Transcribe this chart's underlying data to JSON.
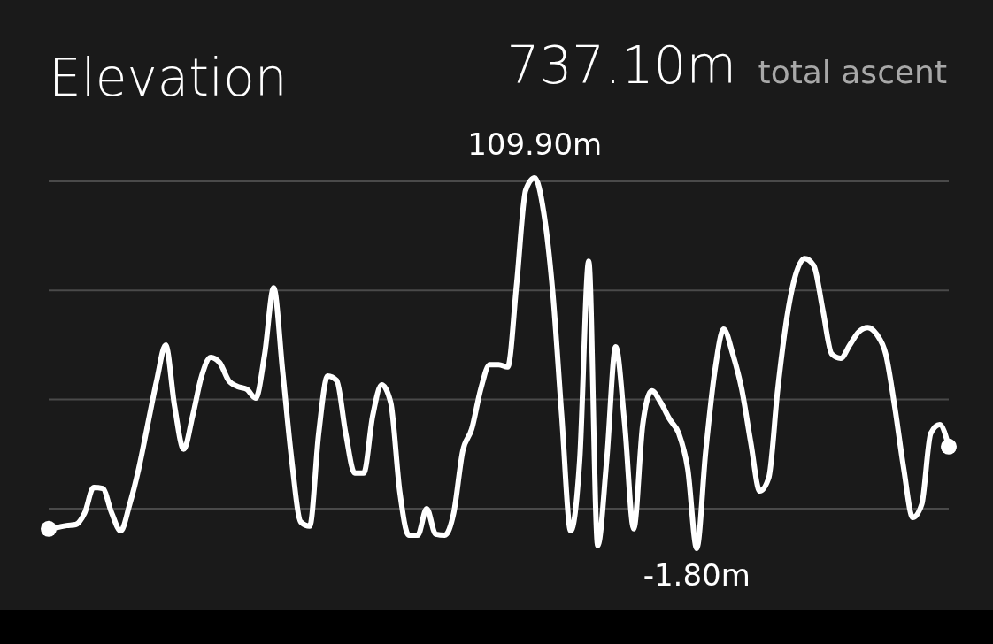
{
  "chart_data": {
    "type": "line",
    "title": "Elevation",
    "subtitle": "737.10m",
    "annotations": [
      "total ascent"
    ],
    "categories": [
      null,
      null,
      null,
      null,
      null,
      null,
      null,
      null,
      null,
      null,
      null,
      null,
      null,
      null,
      null,
      null,
      null,
      null,
      null,
      null,
      null,
      null,
      null,
      null,
      null,
      null,
      null,
      null,
      null,
      null,
      null,
      null,
      null,
      null,
      null,
      null,
      null,
      null,
      null,
      null,
      null,
      null,
      null,
      null,
      null,
      null,
      null,
      null,
      null,
      null,
      null,
      null,
      null,
      null,
      null,
      null,
      null,
      null,
      null,
      null,
      null,
      null,
      null,
      null,
      null,
      null,
      null,
      null,
      null,
      null,
      null,
      null,
      null,
      null,
      null,
      null,
      null,
      null,
      null,
      null,
      null,
      null,
      null,
      null,
      null,
      null,
      null,
      null,
      null,
      null,
      null,
      null,
      null,
      null,
      null,
      null,
      null,
      null,
      null,
      null,
      null
    ],
    "series": [
      {
        "color": "#ffffff",
        "values": [
          4.1,
          4.6,
          5.1,
          5.4,
          8.9,
          16.6,
          16.3,
          8.9,
          3.5,
          11.5,
          22.2,
          35.5,
          48.8,
          59.5,
          40.9,
          28.1,
          38.2,
          50.2,
          55.8,
          54.2,
          48.8,
          47.0,
          46.2,
          43.5,
          56.8,
          76.8,
          51.5,
          24.9,
          6.2,
          4.9,
          32.9,
          50.2,
          48.8,
          32.9,
          20.9,
          20.9,
          38.2,
          47.5,
          42.2,
          15.5,
          2.2,
          2.2,
          10.2,
          2.5,
          2.2,
          8.9,
          27.5,
          34.2,
          46.2,
          53.6,
          53.6,
          52.9,
          78.2,
          106.2,
          109.9,
          99.5,
          75.5,
          38.2,
          3.5,
          24.9,
          84.8,
          -1.0,
          24.9,
          59.0,
          35.5,
          4.1,
          35.5,
          45.7,
          42.2,
          37.1,
          32.9,
          22.2,
          -1.8,
          27.5,
          51.5,
          64.3,
          56.8,
          46.2,
          30.2,
          15.5,
          19.5,
          46.2,
          67.5,
          80.8,
          85.6,
          83.5,
          70.2,
          56.8,
          55.5,
          59.5,
          63.5,
          64.8,
          62.7,
          56.8,
          40.9,
          22.2,
          7.5,
          11.5,
          32.9,
          35.5,
          28.9
        ],
        "value_labels": [
          null,
          null,
          null,
          null,
          null,
          null,
          null,
          null,
          null,
          null,
          null,
          null,
          null,
          null,
          null,
          null,
          null,
          null,
          null,
          null,
          null,
          null,
          null,
          null,
          null,
          null,
          null,
          null,
          null,
          null,
          null,
          null,
          null,
          null,
          null,
          null,
          null,
          null,
          null,
          null,
          null,
          null,
          null,
          null,
          null,
          null,
          null,
          null,
          null,
          null,
          null,
          null,
          null,
          null,
          "109.90m",
          null,
          null,
          null,
          null,
          null,
          null,
          null,
          null,
          null,
          null,
          null,
          null,
          null,
          null,
          null,
          null,
          null,
          "-1.80m",
          null,
          null,
          null,
          null,
          null,
          null,
          null,
          null,
          null,
          null,
          null,
          null,
          null,
          null,
          null,
          null,
          null,
          null,
          null,
          null,
          null,
          null,
          null,
          null,
          null,
          null,
          null,
          null
        ]
      }
    ],
    "grid": true,
    "marker": "none",
    "line_style": "solid"
  }
}
